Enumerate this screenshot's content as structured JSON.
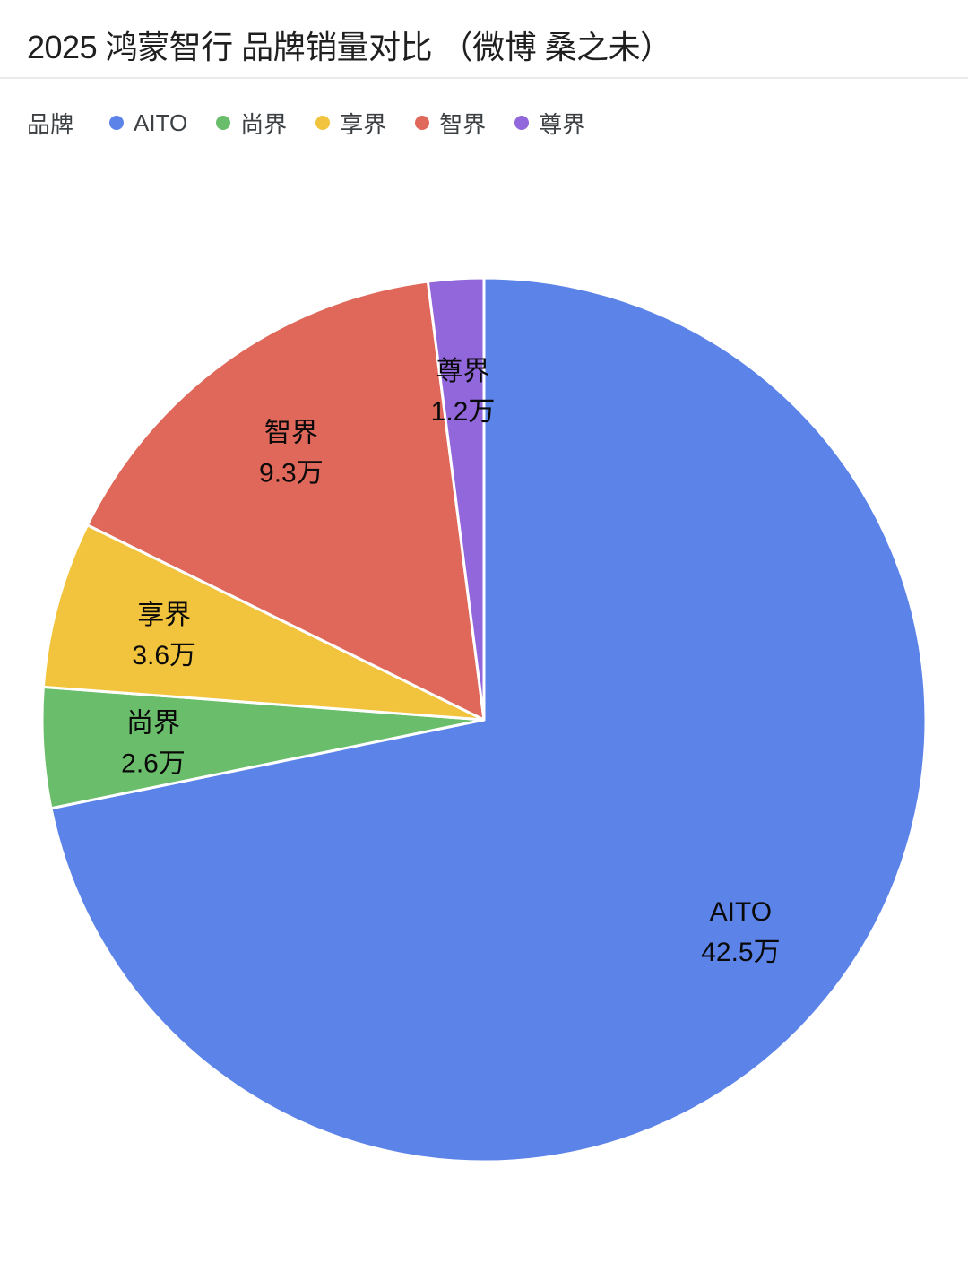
{
  "header": {
    "title": "2025 鸿蒙智行 品牌销量对比 （微博 桑之未）"
  },
  "legend": {
    "title": "品牌"
  },
  "chart_data": {
    "type": "pie",
    "title": "2025 鸿蒙智行 品牌销量对比 （微博 桑之未）",
    "legend_title": "品牌",
    "legend_position": "top-left",
    "start_angle_deg": 0,
    "direction": "clockwise",
    "unit": "万",
    "total_value": 59.2,
    "slices": [
      {
        "label": "AITO",
        "value": 42.5,
        "value_text": "42.5万",
        "color": "#5C83E8"
      },
      {
        "label": "尚界",
        "value": 2.6,
        "value_text": "2.6万",
        "color": "#6ABD6A"
      },
      {
        "label": "享界",
        "value": 3.6,
        "value_text": "3.6万",
        "color": "#F2C43D"
      },
      {
        "label": "智界",
        "value": 9.3,
        "value_text": "9.3万",
        "color": "#DF685B"
      },
      {
        "label": "尊界",
        "value": 1.2,
        "value_text": "1.2万",
        "color": "#9167DB"
      }
    ]
  }
}
